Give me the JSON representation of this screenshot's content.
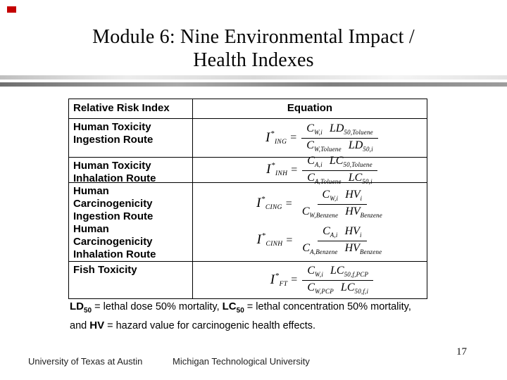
{
  "slide": {
    "title_line1": "Module 6: Nine Environmental Impact /",
    "title_line2": "Health Indexes",
    "page_number": "17",
    "footer_left": "University of Texas at Austin",
    "footer_right": "Michigan Technological University"
  },
  "table": {
    "header": {
      "col1": "Relative Risk Index",
      "col2": "Equation"
    },
    "rows": [
      {
        "label": "Human Toxicity\nIngestion Route"
      },
      {
        "label": "Human Toxicity\nInhalation Route"
      },
      {
        "label": "Human\nCarcinogenicity\nIngestion Route\nHuman\nCarcinogenicity\nInhalation Route"
      },
      {
        "label": "Fish Toxicity"
      }
    ]
  },
  "equations": [
    {
      "lhs": {
        "base": "I",
        "sup": "*",
        "sub": "ING"
      },
      "rel": "=",
      "num": [
        {
          "base": "C",
          "sub": "W,i"
        },
        {
          "base": "LD",
          "sub": "50,Toluene"
        }
      ],
      "den": [
        {
          "base": "C",
          "sub": "W,Toluene"
        },
        {
          "base": "LD",
          "sub": "50,i"
        }
      ]
    },
    {
      "lhs": {
        "base": "I",
        "sup": "*",
        "sub": "INH"
      },
      "rel": "=",
      "num": [
        {
          "base": "C",
          "sub": "A,i"
        },
        {
          "base": "LC",
          "sub": "50,Toluene"
        }
      ],
      "den": [
        {
          "base": "C",
          "sub": "A,Toluene"
        },
        {
          "base": "LC",
          "sub": "50,i"
        }
      ]
    },
    {
      "lhs": {
        "base": "I",
        "sup": "*",
        "sub": "CING"
      },
      "rel": "=",
      "num": [
        {
          "base": "C",
          "sub": "W,i"
        },
        {
          "base": "HV",
          "sub": "i"
        }
      ],
      "den": [
        {
          "base": "C",
          "sub": "W,Benzene"
        },
        {
          "base": "HV",
          "sub": "Benzene"
        }
      ]
    },
    {
      "lhs": {
        "base": "I",
        "sup": "*",
        "sub": "CINH"
      },
      "rel": "=",
      "num": [
        {
          "base": "C",
          "sub": "A,i"
        },
        {
          "base": "HV",
          "sub": "i"
        }
      ],
      "den": [
        {
          "base": "C",
          "sub": "A,Benzene"
        },
        {
          "base": "HV",
          "sub": "Benzene"
        }
      ]
    },
    {
      "lhs": {
        "base": "I",
        "sup": "*",
        "sub": "FT"
      },
      "rel": "=",
      "num": [
        {
          "base": "C",
          "sub": "W,i"
        },
        {
          "base": "LC",
          "sub": "50,f,PCP"
        }
      ],
      "den": [
        {
          "base": "C",
          "sub": "W,PCP"
        },
        {
          "base": "LC",
          "sub": "50,f,i"
        }
      ]
    }
  ],
  "footnote": {
    "ld": "LD",
    "ld_sub": "50",
    "seg1": " = lethal dose 50% mortality, ",
    "lc": "LC",
    "lc_sub": "50",
    "seg2": " = lethal concentration 50% mortality,",
    "seg3": "and ",
    "hv": "HV",
    "seg4": " = hazard value for carcinogenic health effects."
  },
  "colors": {
    "accent_red": "#c40000",
    "divider_light": "#d9d9d9",
    "divider_dark": "#8c8c8c"
  }
}
